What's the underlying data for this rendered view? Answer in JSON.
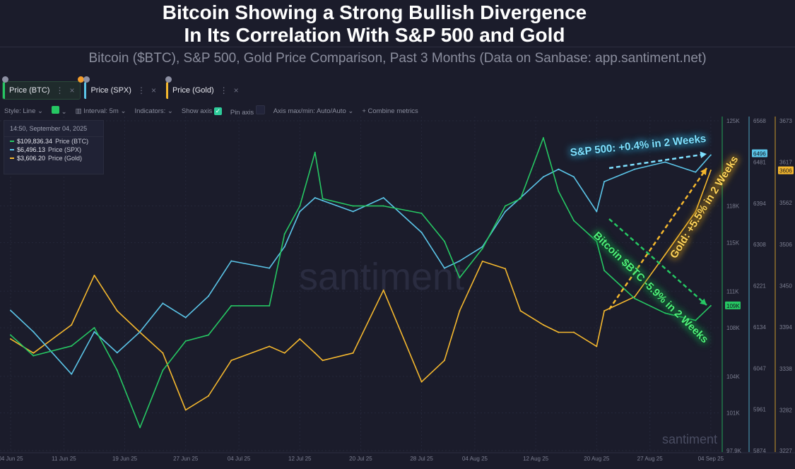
{
  "header": {
    "title_line1": "Bitcoin Showing a Strong Bullish Divergence",
    "title_line2": "In Its Correlation With S&P 500 and Gold",
    "subtitle": "Bitcoin ($BTC), S&P 500, Gold Price Comparison, Past 3 Months (Data on Sanbase: app.santiment.net)"
  },
  "tabs": [
    {
      "label": "Price (BTC)",
      "color": "#26c763"
    },
    {
      "label": "Price (SPX)",
      "color": "#5bc5e8"
    },
    {
      "label": "Price (Gold)",
      "color": "#f5b82e"
    }
  ],
  "toolbar": {
    "style": "Style: Line",
    "interval": "Interval: 5m",
    "indicators": "Indicators:",
    "show_axis": "Show axis",
    "show_axis_checked": true,
    "pin_axis": "Pin axis",
    "pin_axis_checked": false,
    "axis_maxmin": "Axis max/min: Auto/Auto",
    "combine": "+ Combine metrics"
  },
  "tooltip": {
    "time": "14:50, September 04, 2025",
    "rows": [
      {
        "value": "$109,836.34",
        "label": "Price (BTC)"
      },
      {
        "value": "$6,496.13",
        "label": "Price (SPX)"
      },
      {
        "value": "$3,606.20",
        "label": "Price (Gold)"
      }
    ]
  },
  "annotations": {
    "spx": "S&P 500: +0.4% in 2 Weeks",
    "gold": "Gold: +5.5% in 2 Weeks",
    "btc": "Bitcoin $BTC -5.9% in 2 Weeks"
  },
  "watermark": "santiment",
  "chart_data": {
    "type": "line",
    "grid": true,
    "x_tick_labels": [
      "04 Jun 25",
      "11 Jun 25",
      "19 Jun 25",
      "27 Jun 25",
      "04 Jul 25",
      "12 Jul 25",
      "20 Jul 25",
      "28 Jul 25",
      "04 Aug 25",
      "12 Aug 25",
      "20 Aug 25",
      "27 Aug 25",
      "04 Sep 25"
    ],
    "x_tick_dates": [
      "2025-06-04",
      "2025-06-11",
      "2025-06-19",
      "2025-06-27",
      "2025-07-04",
      "2025-07-12",
      "2025-07-20",
      "2025-07-28",
      "2025-08-04",
      "2025-08-12",
      "2025-08-20",
      "2025-08-27",
      "2025-09-04"
    ],
    "x": [
      "2025-06-04",
      "2025-06-07",
      "2025-06-12",
      "2025-06-15",
      "2025-06-18",
      "2025-06-21",
      "2025-06-24",
      "2025-06-27",
      "2025-06-30",
      "2025-07-03",
      "2025-07-08",
      "2025-07-10",
      "2025-07-12",
      "2025-07-14",
      "2025-07-15",
      "2025-07-19",
      "2025-07-23",
      "2025-07-28",
      "2025-07-31",
      "2025-08-02",
      "2025-08-05",
      "2025-08-08",
      "2025-08-10",
      "2025-08-13",
      "2025-08-15",
      "2025-08-17",
      "2025-08-20",
      "2025-08-21",
      "2025-08-25",
      "2025-08-29",
      "2025-09-02",
      "2025-09-04"
    ],
    "series": [
      {
        "name": "Price (BTC)",
        "color": "#26c763",
        "axis": {
          "ticks": [
            "125K",
            "118K",
            "115K",
            "111K",
            "108K",
            "104K",
            "101K",
            "97.9K"
          ],
          "tick_values": [
            125,
            118,
            115,
            111,
            108,
            104,
            101,
            97.9
          ],
          "range": [
            97.9,
            125
          ],
          "current": "109K"
        },
        "values": [
          107.4,
          105.7,
          106.5,
          108.0,
          104.5,
          99.8,
          104.5,
          106.9,
          107.4,
          109.8,
          109.8,
          115.7,
          118.0,
          122.4,
          118.6,
          118.0,
          118.0,
          117.4,
          115.1,
          112.1,
          114.5,
          118.0,
          118.6,
          123.6,
          119.2,
          116.8,
          115.1,
          112.7,
          110.4,
          109.2,
          108.6,
          109.8
        ]
      },
      {
        "name": "Price (SPX)",
        "color": "#5bc5e8",
        "axis": {
          "ticks": [
            "6568",
            "6481",
            "6394",
            "6308",
            "6221",
            "6134",
            "6047",
            "5961",
            "5874"
          ],
          "tick_values": [
            6568,
            6481,
            6394,
            6308,
            6221,
            6134,
            6047,
            5961,
            5874
          ],
          "range": [
            5874,
            6568
          ],
          "current": "6496"
        },
        "values": [
          6169,
          6124,
          6035,
          6124,
          6080,
          6124,
          6184,
          6154,
          6199,
          6273,
          6258,
          6303,
          6377,
          6406,
          6400,
          6377,
          6406,
          6333,
          6258,
          6273,
          6303,
          6377,
          6406,
          6450,
          6466,
          6450,
          6377,
          6440,
          6466,
          6481,
          6460,
          6496
        ]
      },
      {
        "name": "Price (Gold)",
        "color": "#f5b82e",
        "axis": {
          "ticks": [
            "3673",
            "3617",
            "3562",
            "3506",
            "3450",
            "3394",
            "3338",
            "3282",
            "3227"
          ],
          "tick_values": [
            3673,
            3617,
            3562,
            3506,
            3450,
            3394,
            3338,
            3282,
            3227
          ],
          "range": [
            3227,
            3673
          ],
          "current": "3606"
        },
        "values": [
          3378,
          3359,
          3397,
          3464,
          3416,
          3387,
          3359,
          3282,
          3301,
          3349,
          3368,
          3359,
          3378,
          3359,
          3349,
          3359,
          3444,
          3320,
          3349,
          3416,
          3483,
          3473,
          3416,
          3397,
          3387,
          3387,
          3368,
          3416,
          3435,
          3492,
          3550,
          3606
        ]
      }
    ]
  }
}
